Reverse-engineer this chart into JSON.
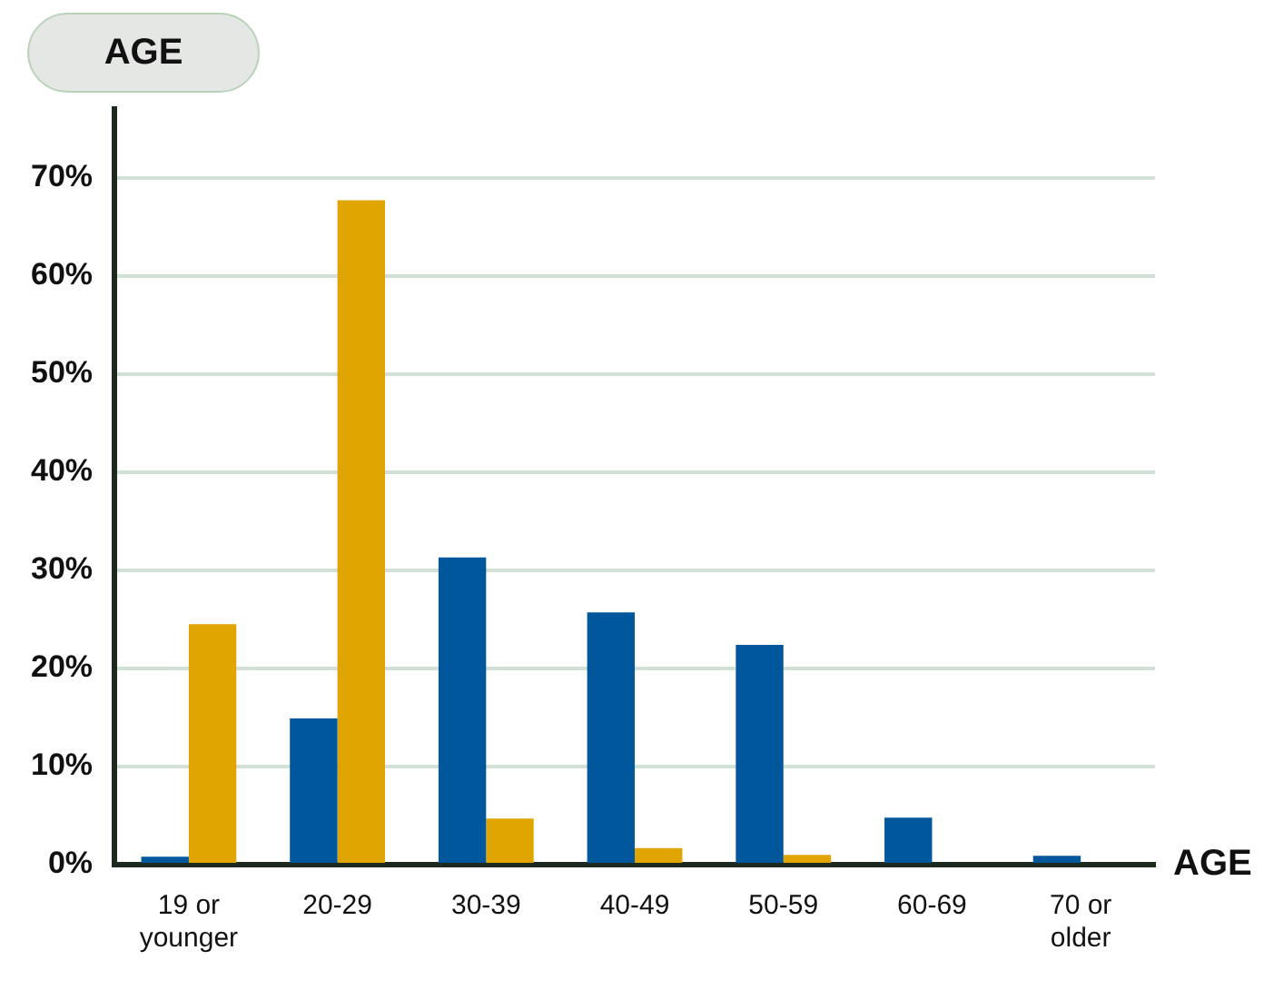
{
  "chart_data": {
    "type": "bar",
    "title": "AGE",
    "xlabel": "AGE",
    "categories": [
      "19 or younger",
      "20-29",
      "30-39",
      "40-49",
      "50-59",
      "60-69",
      "70 or older"
    ],
    "series": [
      {
        "color": "#00579c",
        "values": [
          0.8,
          14.9,
          31.3,
          25.7,
          22.4,
          4.8,
          0.9
        ]
      },
      {
        "color": "#e0a500",
        "values": [
          24.5,
          67.7,
          4.7,
          1.7,
          1.0,
          0,
          0
        ]
      }
    ],
    "ylim": [
      0,
      77
    ],
    "yticks": [
      {
        "value": 0,
        "label": "0%"
      },
      {
        "value": 10,
        "label": "10%"
      },
      {
        "value": 20,
        "label": "20%"
      },
      {
        "value": 30,
        "label": "30%"
      },
      {
        "value": 40,
        "label": "40%"
      },
      {
        "value": 50,
        "label": "50%"
      },
      {
        "value": 60,
        "label": "60%"
      },
      {
        "value": 70,
        "label": "70%"
      }
    ],
    "grid": "y",
    "legend": false
  }
}
